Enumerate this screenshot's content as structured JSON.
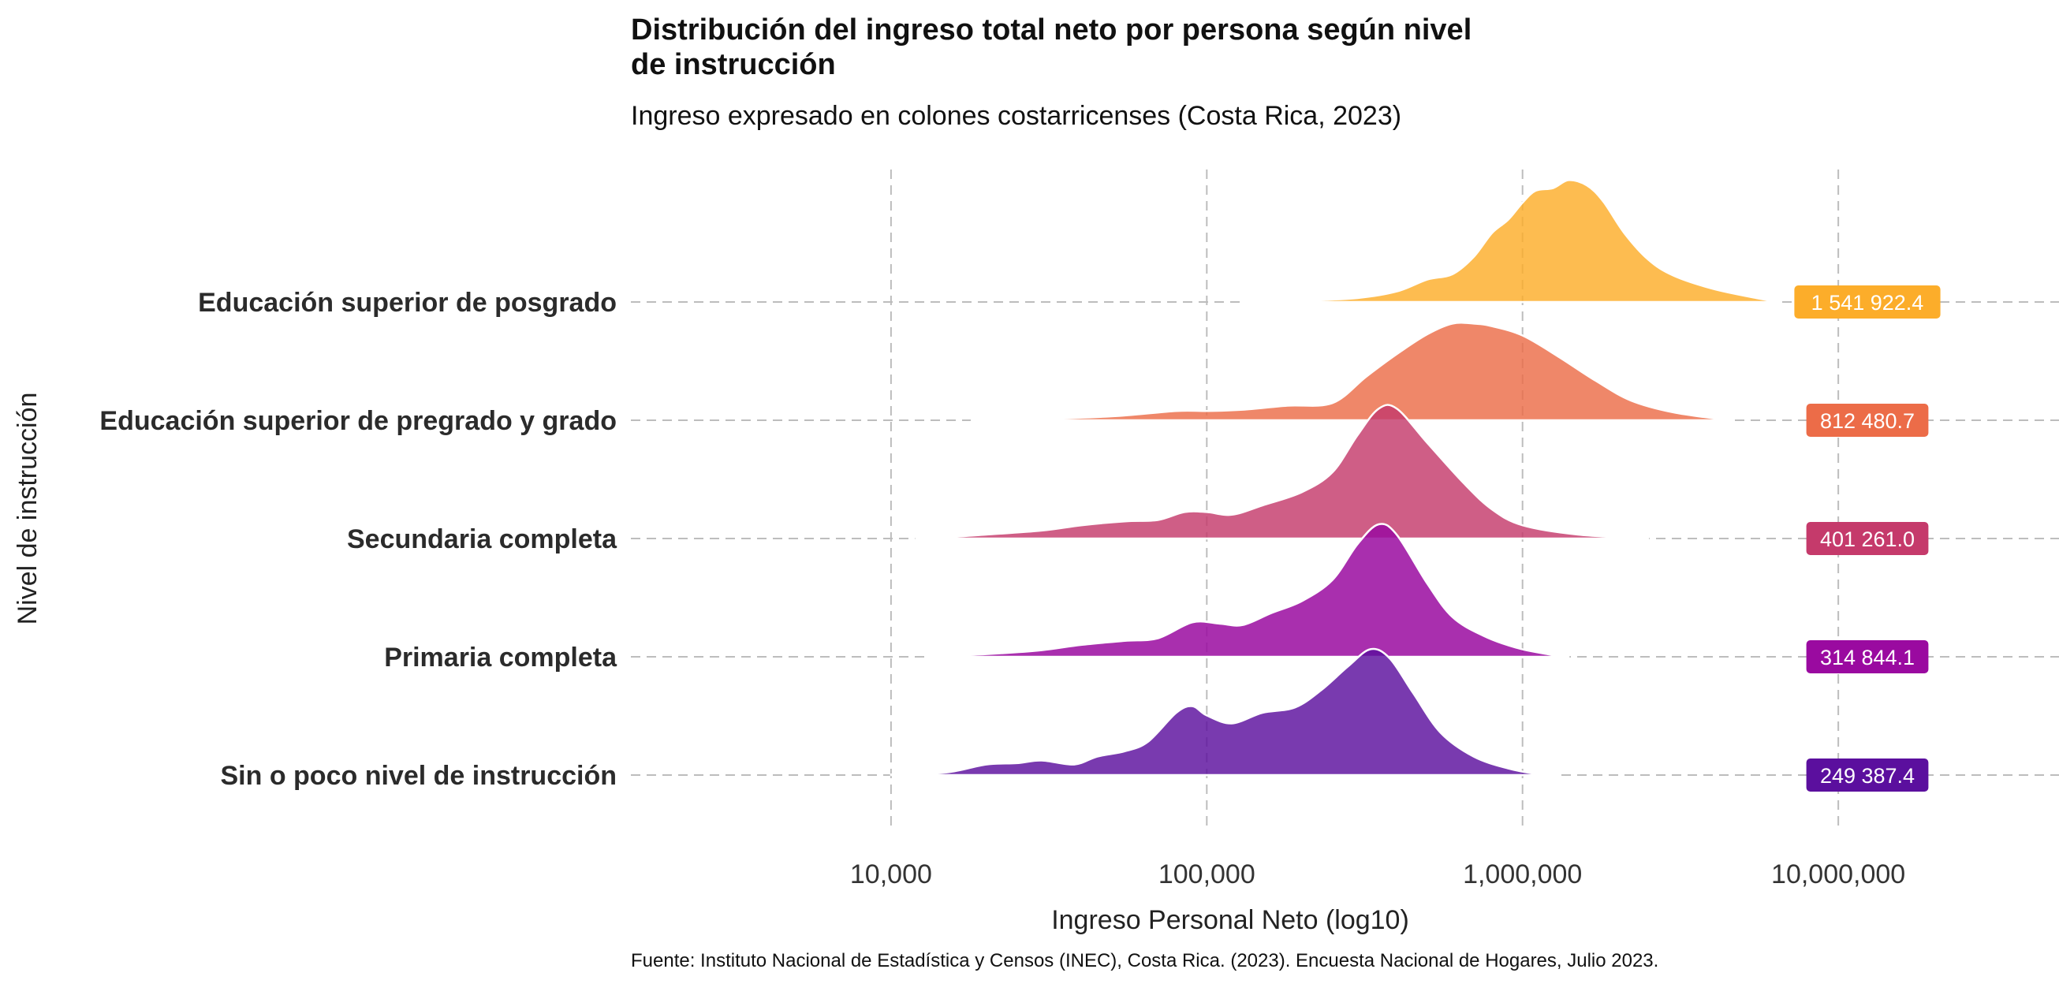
{
  "chart_data": {
    "type": "area",
    "chart_kind": "ridgeline",
    "title_lines": [
      "Distribución del ingreso total neto por persona según nivel",
      "de instrucción"
    ],
    "subtitle": "Ingreso expresado en colones costarricenses (Costa Rica, 2023)",
    "xlabel": "Ingreso Personal Neto (log10)",
    "ylabel": "Nivel de instrucción",
    "caption": "Fuente: Instituto Nacional de Estadística y Censos (INEC), Costa Rica. (2023). Encuesta Nacional de Hogares, Julio 2023.",
    "x_scale": "log10",
    "xlim": [
      1500,
      50000000
    ],
    "x_ticks": [
      {
        "value": 10000,
        "label": "10,000"
      },
      {
        "value": 100000,
        "label": "100,000"
      },
      {
        "value": 1000000,
        "label": "1,000,000"
      },
      {
        "value": 10000000,
        "label": "10,000,000"
      }
    ],
    "grid": true,
    "legend": "none",
    "series": [
      {
        "name": "Sin o poco nivel de instrucción",
        "color": "#5b0f9e",
        "fill_opacity": 0.82,
        "median": 249387.4,
        "median_label": "249 387.4",
        "density": [
          [
            10000,
            0.005
          ],
          [
            15000,
            0.02
          ],
          [
            20000,
            0.08
          ],
          [
            25000,
            0.09
          ],
          [
            30000,
            0.11
          ],
          [
            38000,
            0.08
          ],
          [
            45000,
            0.14
          ],
          [
            55000,
            0.18
          ],
          [
            65000,
            0.25
          ],
          [
            80000,
            0.47
          ],
          [
            90000,
            0.52
          ],
          [
            100000,
            0.45
          ],
          [
            120000,
            0.39
          ],
          [
            150000,
            0.47
          ],
          [
            190000,
            0.51
          ],
          [
            230000,
            0.64
          ],
          [
            280000,
            0.82
          ],
          [
            330000,
            0.95
          ],
          [
            380000,
            0.88
          ],
          [
            450000,
            0.62
          ],
          [
            550000,
            0.32
          ],
          [
            700000,
            0.14
          ],
          [
            900000,
            0.05
          ],
          [
            1100000,
            0.01
          ],
          [
            1300000,
            0.0
          ]
        ]
      },
      {
        "name": "Primaria completa",
        "color": "#9a0aa0",
        "fill_opacity": 0.85,
        "median": 314844.1,
        "median_label": "314 844.1",
        "density": [
          [
            13000,
            0.0
          ],
          [
            15000,
            0.01
          ],
          [
            20000,
            0.02
          ],
          [
            30000,
            0.05
          ],
          [
            40000,
            0.09
          ],
          [
            55000,
            0.12
          ],
          [
            70000,
            0.14
          ],
          [
            90000,
            0.26
          ],
          [
            110000,
            0.25
          ],
          [
            130000,
            0.24
          ],
          [
            160000,
            0.33
          ],
          [
            200000,
            0.42
          ],
          [
            250000,
            0.58
          ],
          [
            300000,
            0.85
          ],
          [
            350000,
            1.0
          ],
          [
            400000,
            0.92
          ],
          [
            500000,
            0.55
          ],
          [
            600000,
            0.3
          ],
          [
            750000,
            0.16
          ],
          [
            950000,
            0.07
          ],
          [
            1200000,
            0.02
          ],
          [
            1400000,
            0.0
          ]
        ]
      },
      {
        "name": "Secundaria completa",
        "color": "#c53a6b",
        "fill_opacity": 0.82,
        "median": 401261.0,
        "median_label": "401 261.0",
        "density": [
          [
            12000,
            0.0
          ],
          [
            15000,
            0.01
          ],
          [
            20000,
            0.03
          ],
          [
            30000,
            0.06
          ],
          [
            40000,
            0.1
          ],
          [
            55000,
            0.13
          ],
          [
            70000,
            0.14
          ],
          [
            85000,
            0.2
          ],
          [
            100000,
            0.2
          ],
          [
            120000,
            0.18
          ],
          [
            150000,
            0.25
          ],
          [
            200000,
            0.35
          ],
          [
            250000,
            0.5
          ],
          [
            300000,
            0.78
          ],
          [
            350000,
            0.98
          ],
          [
            400000,
            0.98
          ],
          [
            500000,
            0.72
          ],
          [
            650000,
            0.42
          ],
          [
            800000,
            0.22
          ],
          [
            1000000,
            0.1
          ],
          [
            1500000,
            0.03
          ],
          [
            2500000,
            0.0
          ]
        ]
      },
      {
        "name": "Educación superior de pregrado y grado",
        "color": "#ec6c48",
        "fill_opacity": 0.82,
        "median": 812480.7,
        "median_label": "812 480.7",
        "density": [
          [
            18000,
            0.0
          ],
          [
            30000,
            0.01
          ],
          [
            50000,
            0.03
          ],
          [
            80000,
            0.07
          ],
          [
            100000,
            0.07
          ],
          [
            130000,
            0.08
          ],
          [
            180000,
            0.11
          ],
          [
            250000,
            0.13
          ],
          [
            320000,
            0.33
          ],
          [
            400000,
            0.5
          ],
          [
            500000,
            0.65
          ],
          [
            600000,
            0.73
          ],
          [
            700000,
            0.73
          ],
          [
            800000,
            0.71
          ],
          [
            1000000,
            0.64
          ],
          [
            1300000,
            0.48
          ],
          [
            1700000,
            0.3
          ],
          [
            2200000,
            0.15
          ],
          [
            3000000,
            0.06
          ],
          [
            4500000,
            0.0
          ]
        ]
      },
      {
        "name": "Educación superior de posgrado",
        "color": "#fcad2a",
        "fill_opacity": 0.82,
        "median": 1541922.4,
        "median_label": "1 541 922.4",
        "density": [
          [
            130000,
            0.0
          ],
          [
            200000,
            0.01
          ],
          [
            300000,
            0.03
          ],
          [
            400000,
            0.08
          ],
          [
            500000,
            0.17
          ],
          [
            600000,
            0.21
          ],
          [
            700000,
            0.34
          ],
          [
            800000,
            0.52
          ],
          [
            900000,
            0.62
          ],
          [
            1000000,
            0.75
          ],
          [
            1100000,
            0.84
          ],
          [
            1250000,
            0.86
          ],
          [
            1400000,
            0.92
          ],
          [
            1600000,
            0.88
          ],
          [
            1800000,
            0.76
          ],
          [
            2100000,
            0.52
          ],
          [
            2500000,
            0.32
          ],
          [
            3000000,
            0.2
          ],
          [
            4000000,
            0.1
          ],
          [
            5500000,
            0.03
          ],
          [
            6500000,
            0.0
          ]
        ]
      }
    ]
  }
}
